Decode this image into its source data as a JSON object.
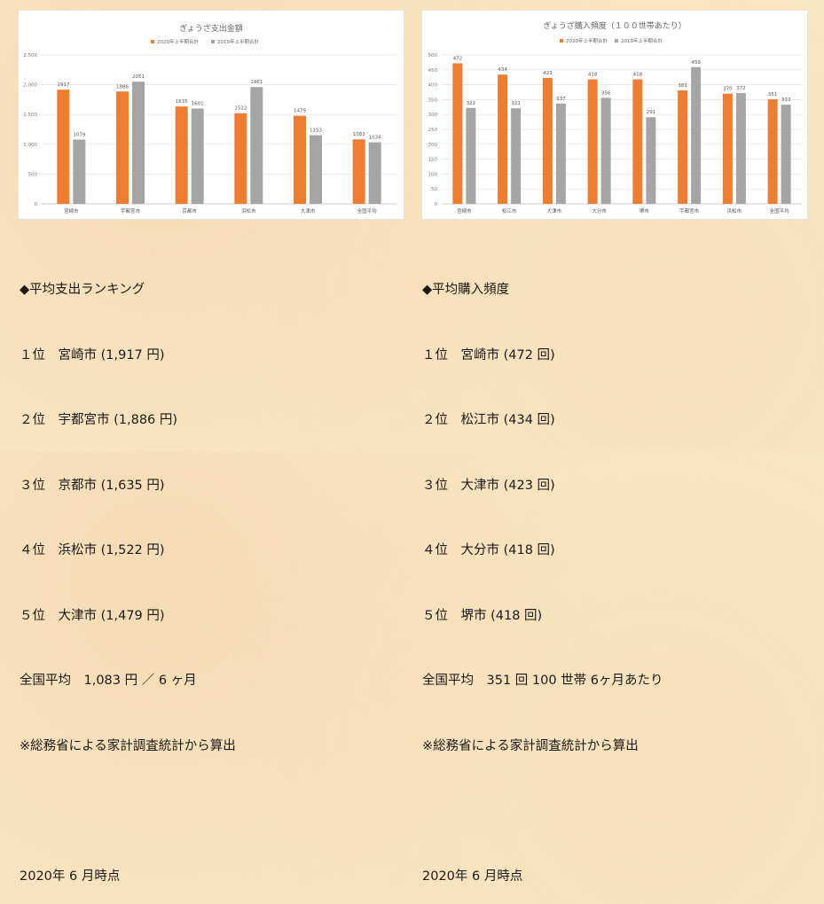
{
  "colors": {
    "orange": "#ed7d31",
    "gray": "#a5a5a5"
  },
  "chart_data": [
    {
      "type": "bar",
      "title": "ぎょうざ支出金額",
      "categories": [
        "宮崎市",
        "宇都宮市",
        "京都市",
        "浜松市",
        "大津市",
        "全国平均"
      ],
      "series": [
        {
          "name": "2020年上半期合計",
          "values": [
            1917,
            1886,
            1635,
            1522,
            1479,
            1083
          ]
        },
        {
          "name": "2019年上半期合計",
          "values": [
            1079,
            2051,
            1601,
            1961,
            1153,
            1034
          ]
        }
      ],
      "ylim": [
        0,
        2500
      ],
      "yticks": [
        "0",
        "500",
        "1,000",
        "1,500",
        "2,000",
        "2,500"
      ],
      "legend": "top",
      "grid": true
    },
    {
      "type": "bar",
      "title": "ぎょうざ購入頻度（１００世帯あたり）",
      "categories": [
        "宮崎市",
        "松江市",
        "大津市",
        "大分市",
        "堺市",
        "宇都宮市",
        "浜松市",
        "全国平均"
      ],
      "series": [
        {
          "name": "2020年上半期合計",
          "values": [
            472,
            434,
            423,
            418,
            418,
            381,
            370,
            351
          ]
        },
        {
          "name": "2019年上半期合計",
          "values": [
            322,
            321,
            337,
            356,
            291,
            459,
            372,
            333
          ]
        }
      ],
      "ylim": [
        0,
        500
      ],
      "yticks": [
        "0",
        "50",
        "100",
        "150",
        "200",
        "250",
        "300",
        "350",
        "400",
        "450",
        "500"
      ],
      "legend": "top",
      "grid": true
    }
  ],
  "left_text": {
    "heading": "◆平均支出ランキング",
    "items": [
      "１位　宮崎市 (1,917 円)",
      "２位　宇都宮市 (1,886 円)",
      "３位　京都市 (1,635 円)",
      "４位　浜松市 (1,522 円)",
      "５位　大津市 (1,479 円)"
    ],
    "average": "全国平均　1,083 円 ／ 6 ヶ月",
    "source": "※総務省による家計調査統計から算出",
    "date": "2020年 6 月時点"
  },
  "right_text": {
    "heading": "◆平均購入頻度",
    "items": [
      "１位　宮崎市 (472 回)",
      "２位　松江市 (434 回)",
      "３位　大津市 (423 回)",
      "４位　大分市 (418 回)",
      "５位　堺市 (418 回)"
    ],
    "average": "全国平均　351 回 100 世帯 6ヶ月あたり",
    "source": "※総務省による家計調査統計から算出",
    "date": "2020年 6 月時点"
  }
}
